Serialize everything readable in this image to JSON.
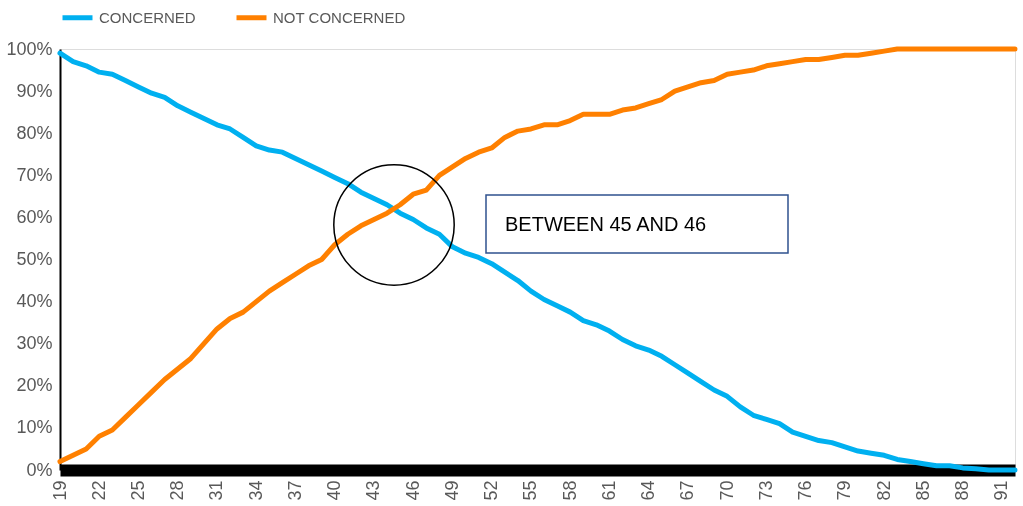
{
  "chart_data": {
    "type": "line",
    "x": [
      19,
      20,
      21,
      22,
      23,
      24,
      25,
      26,
      27,
      28,
      29,
      30,
      31,
      32,
      33,
      34,
      35,
      36,
      37,
      38,
      39,
      40,
      41,
      42,
      43,
      44,
      45,
      46,
      47,
      48,
      49,
      50,
      51,
      52,
      53,
      54,
      55,
      56,
      57,
      58,
      59,
      60,
      61,
      62,
      63,
      64,
      65,
      66,
      67,
      68,
      69,
      70,
      71,
      72,
      73,
      74,
      75,
      76,
      77,
      78,
      79,
      80,
      81,
      82,
      83,
      84,
      85,
      86,
      87,
      88,
      89,
      90,
      91,
      92
    ],
    "series": [
      {
        "name": "CONCERNED",
        "color": "#00b0f0",
        "values": [
          99,
          97,
          96,
          94.5,
          94,
          92.5,
          91,
          89.5,
          88.5,
          86.5,
          85,
          83.5,
          82,
          81,
          79,
          77,
          76,
          75.5,
          74,
          72.5,
          71,
          69.5,
          68,
          66,
          64.5,
          63,
          61,
          59.5,
          57.5,
          56,
          53,
          51.5,
          50.5,
          49,
          47,
          45,
          42.5,
          40.5,
          39,
          37.5,
          35.5,
          34.5,
          33,
          31,
          29.5,
          28.5,
          27,
          25,
          23,
          21,
          19,
          17.5,
          15,
          13,
          12,
          11,
          9,
          8,
          7,
          6.5,
          5.5,
          4.5,
          4,
          3.5,
          2.5,
          2,
          1.5,
          1,
          1,
          0.5,
          0.3,
          0,
          0,
          0
        ]
      },
      {
        "name": "NOT CONCERNED",
        "color": "#ff8000",
        "values": [
          2,
          3.5,
          5,
          8,
          9.5,
          12.5,
          15.5,
          18.5,
          21.5,
          24,
          26.5,
          30,
          33.5,
          36,
          37.5,
          40,
          42.5,
          44.5,
          46.5,
          48.5,
          50,
          53.5,
          56,
          58,
          59.5,
          61,
          63,
          65.5,
          66.5,
          70,
          72,
          74,
          75.5,
          76.5,
          79,
          80.5,
          81,
          82,
          82,
          83,
          84.5,
          84.5,
          84.5,
          85.5,
          86,
          87,
          88,
          90,
          91,
          92,
          92.5,
          94,
          94.5,
          95,
          96,
          96.5,
          97,
          97.5,
          97.5,
          98,
          98.5,
          98.5,
          99,
          99.5,
          100,
          100,
          100,
          100,
          100,
          100,
          100,
          100,
          100,
          100
        ]
      }
    ],
    "xlim": [
      19,
      92
    ],
    "xticks": [
      19,
      22,
      25,
      28,
      31,
      34,
      37,
      40,
      43,
      46,
      49,
      52,
      55,
      58,
      61,
      64,
      67,
      70,
      73,
      76,
      79,
      82,
      85,
      88,
      91
    ],
    "ylim": [
      0,
      100
    ],
    "yticks": [
      {
        "value": 0,
        "label": "0%"
      },
      {
        "value": 10,
        "label": "10%"
      },
      {
        "value": 20,
        "label": "20%"
      },
      {
        "value": 30,
        "label": "30%"
      },
      {
        "value": 40,
        "label": "40%"
      },
      {
        "value": 50,
        "label": "50%"
      },
      {
        "value": 60,
        "label": "60%"
      },
      {
        "value": 70,
        "label": "70%"
      },
      {
        "value": 80,
        "label": "80%"
      },
      {
        "value": 90,
        "label": "90%"
      },
      {
        "value": 100,
        "label": "100%"
      }
    ],
    "annotations": [
      "BETWEEN 45 AND 46"
    ],
    "legend": "top",
    "grid": false,
    "marker": "none",
    "line_style": "solid"
  }
}
